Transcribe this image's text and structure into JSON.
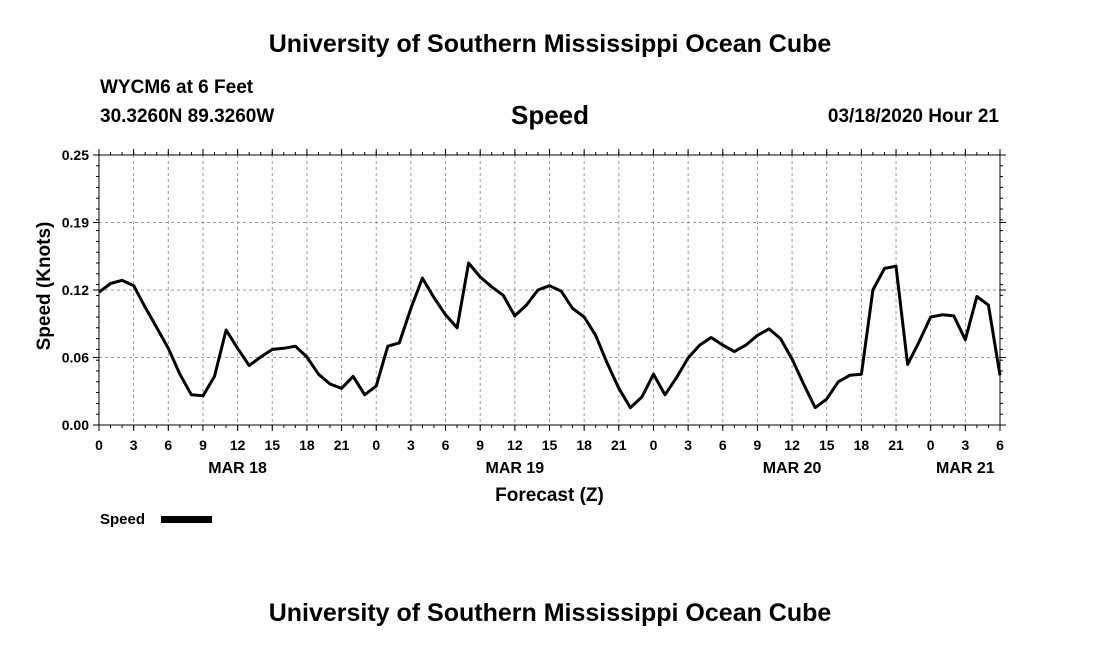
{
  "header": {
    "title": "University of Southern Mississippi Ocean Cube",
    "station": "WYCM6 at 6 Feet",
    "coords": "30.3260N 89.3260W",
    "run_time": "03/18/2020 Hour 21"
  },
  "footer": {
    "title": "University of Southern Mississippi Ocean Cube"
  },
  "colors": {
    "line": "#000000",
    "grid": "#999999"
  },
  "chart_data": {
    "type": "line",
    "title": "Speed",
    "xlabel": "Forecast (Z)",
    "ylabel": "Speed (Knots)",
    "ylim": [
      0,
      0.25
    ],
    "xlim_hours": [
      0,
      78
    ],
    "yticks": [
      "0.00",
      "0.06",
      "0.12",
      "0.19",
      "0.25"
    ],
    "ytick_values": [
      0,
      0.0625,
      0.125,
      0.1875,
      0.25
    ],
    "xtick_labels": [
      "0",
      "3",
      "6",
      "9",
      "12",
      "15",
      "18",
      "21",
      "0",
      "3",
      "6",
      "9",
      "12",
      "15",
      "18",
      "21",
      "0",
      "3",
      "6",
      "9",
      "12",
      "15",
      "18",
      "21",
      "0",
      "3",
      "6"
    ],
    "date_labels": [
      {
        "label": "MAR 18",
        "hour": 12
      },
      {
        "label": "MAR 19",
        "hour": 36
      },
      {
        "label": "MAR 20",
        "hour": 60
      },
      {
        "label": "MAR 21",
        "hour": 75
      }
    ],
    "grid": true,
    "legend": {
      "label": "Speed",
      "position": "bottom-left"
    },
    "series": [
      {
        "name": "Speed",
        "x": [
          0,
          1,
          2,
          3,
          4,
          5,
          6,
          7,
          8,
          9,
          10,
          11,
          12,
          13,
          14,
          15,
          16,
          17,
          18,
          19,
          20,
          21,
          22,
          23,
          24,
          25,
          26,
          27,
          28,
          29,
          30,
          31,
          32,
          33,
          34,
          35,
          36,
          37,
          38,
          39,
          40,
          41,
          42,
          43,
          44,
          45,
          46,
          47,
          48,
          49,
          50,
          51,
          52,
          53,
          54,
          55,
          56,
          57,
          58,
          59,
          60,
          61,
          62,
          63,
          64,
          65,
          66,
          67,
          68,
          69,
          70,
          71,
          72,
          73,
          74,
          75,
          76,
          77,
          78
        ],
        "values": [
          0.123,
          0.131,
          0.134,
          0.129,
          0.109,
          0.09,
          0.071,
          0.047,
          0.028,
          0.027,
          0.045,
          0.088,
          0.071,
          0.055,
          0.063,
          0.07,
          0.071,
          0.073,
          0.063,
          0.047,
          0.038,
          0.034,
          0.045,
          0.028,
          0.036,
          0.073,
          0.076,
          0.108,
          0.136,
          0.118,
          0.102,
          0.09,
          0.15,
          0.137,
          0.128,
          0.12,
          0.101,
          0.111,
          0.125,
          0.129,
          0.124,
          0.108,
          0.1,
          0.083,
          0.057,
          0.034,
          0.016,
          0.026,
          0.047,
          0.028,
          0.044,
          0.062,
          0.074,
          0.081,
          0.074,
          0.068,
          0.074,
          0.083,
          0.089,
          0.08,
          0.061,
          0.038,
          0.016,
          0.024,
          0.04,
          0.046,
          0.047,
          0.125,
          0.145,
          0.147,
          0.056,
          0.077,
          0.1,
          0.102,
          0.101,
          0.079,
          0.119,
          0.111,
          0.046
        ]
      }
    ]
  }
}
